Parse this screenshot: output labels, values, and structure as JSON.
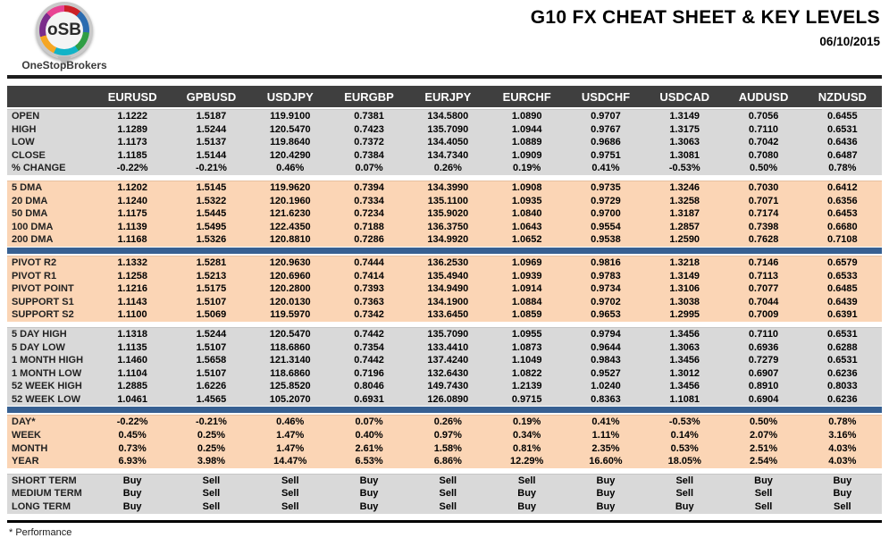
{
  "logo": {
    "brand_letters": "oSB",
    "brand_name": "OneStopBrokers"
  },
  "header": {
    "title": "G10 FX CHEAT SHEET & KEY LEVELS",
    "date": "06/10/2015"
  },
  "colors": {
    "header_bar": "#3F3F3F",
    "section_gray": "#D9D9D9",
    "section_peach": "#FBD5B5",
    "divider_blue": "#376092",
    "buy_green": "#00B050",
    "sell_red": "#FF0000",
    "pivot_point_navy": "#17375D"
  },
  "table": {
    "columns": [
      "EURUSD",
      "GPBUSD",
      "USDJPY",
      "EURGBP",
      "EURJPY",
      "EURCHF",
      "USDCHF",
      "USDCAD",
      "AUDUSD",
      "NZDUSD"
    ],
    "sections": [
      {
        "name": "ohlc",
        "style": "gray",
        "divider_after": "gap",
        "rows": [
          {
            "label": "OPEN",
            "values": [
              "1.1222",
              "1.5187",
              "119.9100",
              "0.7381",
              "134.5800",
              "1.0890",
              "0.9707",
              "1.3149",
              "0.7056",
              "0.6455"
            ]
          },
          {
            "label": "HIGH",
            "values": [
              "1.1289",
              "1.5244",
              "120.5470",
              "0.7423",
              "135.7090",
              "1.0944",
              "0.9767",
              "1.3175",
              "0.7110",
              "0.6531"
            ]
          },
          {
            "label": "LOW",
            "values": [
              "1.1173",
              "1.5137",
              "119.8640",
              "0.7372",
              "134.4050",
              "1.0889",
              "0.9686",
              "1.3063",
              "0.7042",
              "0.6436"
            ]
          },
          {
            "label": "CLOSE",
            "values": [
              "1.1185",
              "1.5144",
              "120.4290",
              "0.7384",
              "134.7340",
              "1.0909",
              "0.9751",
              "1.3081",
              "0.7080",
              "0.6487"
            ]
          },
          {
            "label": "% CHANGE",
            "values": [
              "-0.22%",
              "-0.21%",
              "0.46%",
              "0.07%",
              "0.26%",
              "0.19%",
              "0.41%",
              "-0.53%",
              "0.50%",
              "0.78%"
            ]
          }
        ]
      },
      {
        "name": "moving-averages",
        "style": "peach",
        "divider_after": "blue",
        "rows": [
          {
            "label": "5 DMA",
            "values": [
              "1.1202",
              "1.5145",
              "119.9620",
              "0.7394",
              "134.3990",
              "1.0908",
              "0.9735",
              "1.3246",
              "0.7030",
              "0.6412"
            ]
          },
          {
            "label": "20 DMA",
            "values": [
              "1.1240",
              "1.5322",
              "120.1960",
              "0.7334",
              "135.1100",
              "1.0935",
              "0.9729",
              "1.3258",
              "0.7071",
              "0.6356"
            ]
          },
          {
            "label": "50 DMA",
            "values": [
              "1.1175",
              "1.5445",
              "121.6230",
              "0.7234",
              "135.9020",
              "1.0840",
              "0.9700",
              "1.3187",
              "0.7174",
              "0.6453"
            ]
          },
          {
            "label": "100 DMA",
            "values": [
              "1.1139",
              "1.5495",
              "122.4350",
              "0.7188",
              "136.3750",
              "1.0643",
              "0.9554",
              "1.2857",
              "0.7398",
              "0.6680"
            ]
          },
          {
            "label": "200 DMA",
            "values": [
              "1.1168",
              "1.5326",
              "120.8810",
              "0.7286",
              "134.9920",
              "1.0652",
              "0.9538",
              "1.2590",
              "0.7628",
              "0.7108"
            ]
          }
        ]
      },
      {
        "name": "pivots",
        "style": "peach",
        "divider_after": "gap",
        "rows": [
          {
            "label": "PIVOT R2",
            "label_color": "green",
            "values": [
              "1.1332",
              "1.5281",
              "120.9630",
              "0.7444",
              "136.2530",
              "1.0969",
              "0.9816",
              "1.3218",
              "0.7146",
              "0.6579"
            ]
          },
          {
            "label": "PIVOT R1",
            "label_color": "green",
            "values": [
              "1.1258",
              "1.5213",
              "120.6960",
              "0.7414",
              "135.4940",
              "1.0939",
              "0.9783",
              "1.3149",
              "0.7113",
              "0.6533"
            ]
          },
          {
            "label": "PIVOT POINT",
            "label_color": "navy",
            "values": [
              "1.1216",
              "1.5175",
              "120.2800",
              "0.7393",
              "134.9490",
              "1.0914",
              "0.9734",
              "1.3106",
              "0.7077",
              "0.6485"
            ]
          },
          {
            "label": "SUPPORT S1",
            "label_color": "red",
            "values": [
              "1.1143",
              "1.5107",
              "120.0130",
              "0.7363",
              "134.1900",
              "1.0884",
              "0.9702",
              "1.3038",
              "0.7044",
              "0.6439"
            ]
          },
          {
            "label": "SUPPORT S2",
            "label_color": "red",
            "values": [
              "1.1100",
              "1.5069",
              "119.5970",
              "0.7342",
              "133.6450",
              "1.0859",
              "0.9653",
              "1.2995",
              "0.7009",
              "0.6391"
            ]
          }
        ]
      },
      {
        "name": "ranges",
        "style": "gray",
        "divider_after": "blue",
        "rows": [
          {
            "label": "5 DAY HIGH",
            "values": [
              "1.1318",
              "1.5244",
              "120.5470",
              "0.7442",
              "135.7090",
              "1.0955",
              "0.9794",
              "1.3456",
              "0.7110",
              "0.6531"
            ]
          },
          {
            "label": "5 DAY LOW",
            "values": [
              "1.1135",
              "1.5107",
              "118.6860",
              "0.7354",
              "133.4410",
              "1.0873",
              "0.9644",
              "1.3063",
              "0.6936",
              "0.6288"
            ]
          },
          {
            "label": "1 MONTH HIGH",
            "values": [
              "1.1460",
              "1.5658",
              "121.3140",
              "0.7442",
              "137.4240",
              "1.1049",
              "0.9843",
              "1.3456",
              "0.7279",
              "0.6531"
            ]
          },
          {
            "label": "1 MONTH LOW",
            "values": [
              "1.1104",
              "1.5107",
              "118.6860",
              "0.7196",
              "132.6430",
              "1.0822",
              "0.9527",
              "1.3012",
              "0.6907",
              "0.6236"
            ]
          },
          {
            "label": "52 WEEK HIGH",
            "values": [
              "1.2885",
              "1.6226",
              "125.8520",
              "0.8046",
              "149.7430",
              "1.2139",
              "1.0240",
              "1.3456",
              "0.8910",
              "0.8033"
            ]
          },
          {
            "label": "52 WEEK LOW",
            "values": [
              "1.0461",
              "1.4565",
              "105.2070",
              "0.6931",
              "126.0890",
              "0.9715",
              "0.8363",
              "1.1081",
              "0.6904",
              "0.6236"
            ]
          }
        ]
      },
      {
        "name": "performance",
        "style": "peach",
        "divider_after": "gap",
        "rows": [
          {
            "label": "DAY*",
            "values": [
              "-0.22%",
              "-0.21%",
              "0.46%",
              "0.07%",
              "0.26%",
              "0.19%",
              "0.41%",
              "-0.53%",
              "0.50%",
              "0.78%"
            ]
          },
          {
            "label": "WEEK",
            "values": [
              "0.45%",
              "0.25%",
              "1.47%",
              "0.40%",
              "0.97%",
              "0.34%",
              "1.11%",
              "0.14%",
              "2.07%",
              "3.16%"
            ]
          },
          {
            "label": "MONTH",
            "values": [
              "0.73%",
              "0.25%",
              "1.47%",
              "2.61%",
              "1.58%",
              "0.81%",
              "2.35%",
              "0.53%",
              "2.51%",
              "4.03%"
            ]
          },
          {
            "label": "YEAR",
            "values": [
              "6.93%",
              "3.98%",
              "14.47%",
              "6.53%",
              "6.86%",
              "12.29%",
              "16.60%",
              "18.05%",
              "2.54%",
              "4.03%"
            ]
          }
        ]
      },
      {
        "name": "signals",
        "style": "gray",
        "divider_after": null,
        "rows": [
          {
            "label": "SHORT TERM",
            "values": [
              "Buy",
              "Sell",
              "Sell",
              "Buy",
              "Sell",
              "Sell",
              "Buy",
              "Sell",
              "Buy",
              "Buy"
            ]
          },
          {
            "label": "MEDIUM TERM",
            "values": [
              "Buy",
              "Sell",
              "Sell",
              "Buy",
              "Sell",
              "Buy",
              "Buy",
              "Sell",
              "Sell",
              "Buy"
            ]
          },
          {
            "label": "LONG TERM",
            "values": [
              "Buy",
              "Sell",
              "Sell",
              "Buy",
              "Sell",
              "Buy",
              "Buy",
              "Buy",
              "Sell",
              "Sell"
            ]
          }
        ]
      }
    ]
  },
  "footer": {
    "note": "* Performance"
  }
}
